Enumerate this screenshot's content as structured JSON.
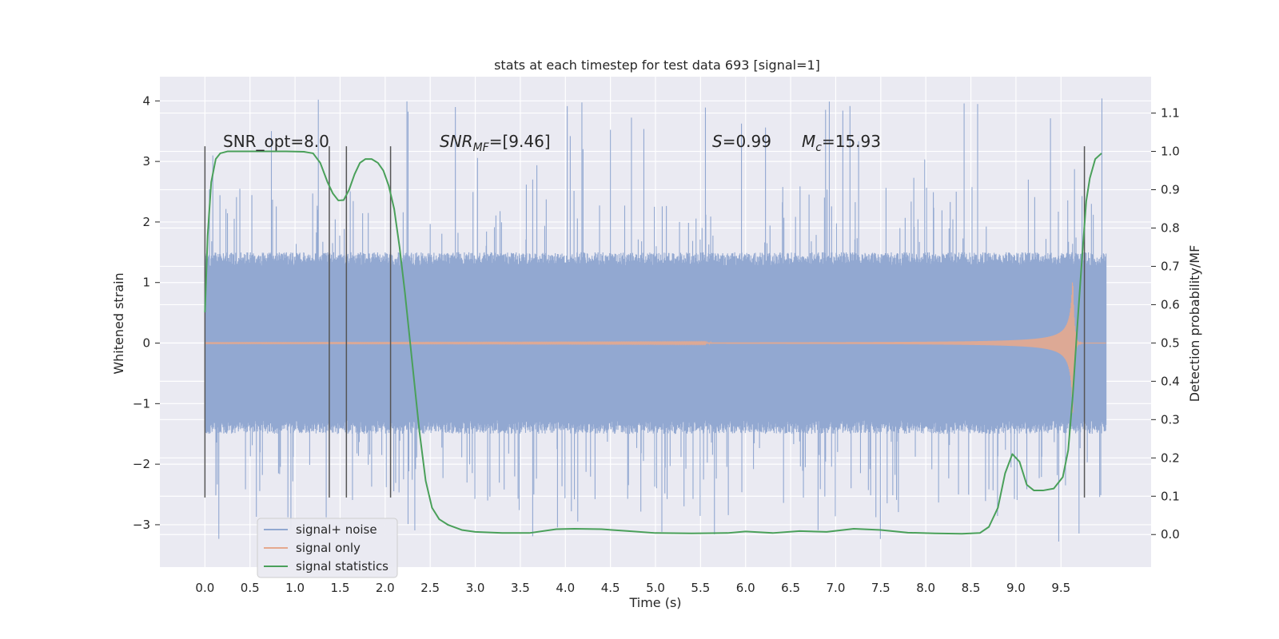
{
  "chart_data": {
    "type": "line",
    "title": "stats at each timestep for test data 693 [signal=1]",
    "xlabel": "Time (s)",
    "ylabel": "Whitened strain",
    "y2label": "Detection probability/MF",
    "xlim": [
      -0.5,
      10.5
    ],
    "ylim": [
      -3.7,
      4.4
    ],
    "y2lim": [
      -0.085,
      1.195
    ],
    "x_ticks": [
      0.0,
      0.5,
      1.0,
      1.5,
      2.0,
      2.5,
      3.0,
      3.5,
      4.0,
      4.5,
      5.0,
      5.5,
      6.0,
      6.5,
      7.0,
      7.5,
      8.0,
      8.5,
      9.0,
      9.5
    ],
    "x_tick_labels": [
      "0.0",
      "0.5",
      "1.0",
      "1.5",
      "2.0",
      "2.5",
      "3.0",
      "3.5",
      "4.0",
      "4.5",
      "5.0",
      "5.5",
      "6.0",
      "6.5",
      "7.0",
      "7.5",
      "8.0",
      "8.5",
      "9.0",
      "9.5"
    ],
    "y_ticks": [
      -3,
      -2,
      -1,
      0,
      1,
      2,
      3,
      4
    ],
    "y_tick_labels": [
      "−3",
      "−2",
      "−1",
      "0",
      "1",
      "2",
      "3",
      "4"
    ],
    "y2_ticks": [
      0.0,
      0.1,
      0.2,
      0.3,
      0.4,
      0.5,
      0.6,
      0.7,
      0.8,
      0.9,
      1.0,
      1.1
    ],
    "y2_tick_labels": [
      "0.0",
      "0.1",
      "0.2",
      "0.3",
      "0.4",
      "0.5",
      "0.6",
      "0.7",
      "0.8",
      "0.9",
      "1.0",
      "1.1"
    ],
    "grid": true,
    "legend_position": "lower-left",
    "annotations": {
      "snr_opt": "SNR_opt=8.0",
      "snr_mf_main": "SNR",
      "snr_mf_sub": "MF",
      "snr_mf_rest": "=[9.46]",
      "s_main": "S",
      "s_rest": "=0.99",
      "mc_main": "M",
      "mc_sub": "c",
      "mc_rest": "=15.93"
    },
    "vertical_markers": [
      0.0,
      1.38,
      1.57,
      2.06,
      9.76
    ],
    "series": [
      {
        "name": "signal+ noise",
        "color": "#92a8d1",
        "noise_envelope": {
          "x_start": 0.0,
          "x_end": 10.0,
          "core_amplitude": 1.5,
          "peak_max": 4.05,
          "peak_min": -3.35
        }
      },
      {
        "name": "signal only",
        "color": "#e5a98e",
        "chirp": {
          "x_start": 0.0,
          "merger_time": 9.63,
          "x_end": 10.0,
          "peak_amplitude": 1.15
        }
      },
      {
        "name": "signal statistics",
        "color": "#4aa05a",
        "axis": "right",
        "x": [
          0.0,
          0.03,
          0.07,
          0.12,
          0.17,
          0.25,
          0.4,
          0.6,
          0.9,
          1.1,
          1.2,
          1.28,
          1.36,
          1.42,
          1.48,
          1.54,
          1.6,
          1.66,
          1.72,
          1.78,
          1.85,
          1.92,
          1.98,
          2.04,
          2.1,
          2.16,
          2.22,
          2.3,
          2.38,
          2.45,
          2.52,
          2.6,
          2.7,
          2.85,
          3.0,
          3.3,
          3.6,
          3.9,
          4.1,
          4.4,
          4.7,
          5.0,
          5.4,
          5.8,
          6.0,
          6.3,
          6.6,
          6.9,
          7.2,
          7.5,
          7.8,
          8.1,
          8.4,
          8.6,
          8.7,
          8.8,
          8.88,
          8.96,
          9.04,
          9.12,
          9.2,
          9.3,
          9.42,
          9.52,
          9.58,
          9.63,
          9.68,
          9.73,
          9.78,
          9.82,
          9.88,
          9.95
        ],
        "values": [
          0.58,
          0.78,
          0.92,
          0.98,
          0.995,
          1.0,
          1.0,
          1.0,
          1.0,
          0.999,
          0.995,
          0.97,
          0.92,
          0.89,
          0.872,
          0.873,
          0.9,
          0.94,
          0.97,
          0.98,
          0.98,
          0.97,
          0.95,
          0.91,
          0.85,
          0.75,
          0.63,
          0.45,
          0.27,
          0.14,
          0.07,
          0.04,
          0.025,
          0.012,
          0.007,
          0.004,
          0.004,
          0.014,
          0.015,
          0.014,
          0.009,
          0.004,
          0.003,
          0.004,
          0.008,
          0.004,
          0.009,
          0.007,
          0.015,
          0.012,
          0.005,
          0.003,
          0.002,
          0.004,
          0.02,
          0.07,
          0.16,
          0.21,
          0.19,
          0.13,
          0.115,
          0.115,
          0.12,
          0.15,
          0.22,
          0.36,
          0.54,
          0.71,
          0.87,
          0.93,
          0.98,
          0.995
        ]
      }
    ]
  }
}
